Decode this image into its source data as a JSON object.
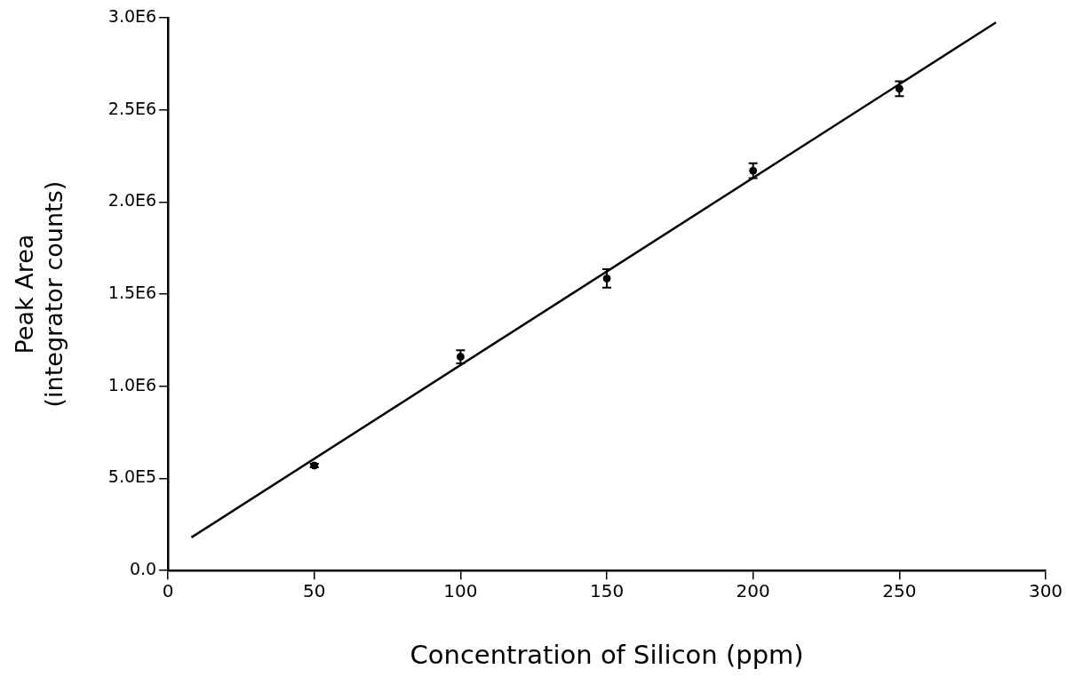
{
  "chart_data": {
    "type": "scatter",
    "xlabel": "Concentration of Silicon (ppm)",
    "ylabel": "Peak Area\n(integrator counts)",
    "xlim": [
      0,
      300
    ],
    "xticks": [
      0,
      50,
      100,
      150,
      200,
      250,
      300
    ],
    "ylim": [
      0,
      3000000
    ],
    "yticks": [
      {
        "value": 0,
        "label": "0.0"
      },
      {
        "value": 500000,
        "label": "5.0E5"
      },
      {
        "value": 1000000,
        "label": "1.0E6"
      },
      {
        "value": 1500000,
        "label": "1.5E6"
      },
      {
        "value": 2000000,
        "label": "2.0E6"
      },
      {
        "value": 2500000,
        "label": "2.5E6"
      },
      {
        "value": 3000000,
        "label": "3.0E6"
      }
    ],
    "grid": false,
    "legend": false,
    "series": [
      {
        "color": "#000000",
        "marker": "circle",
        "x": [
          50,
          100,
          150,
          200,
          250
        ],
        "values": [
          570000,
          1160000,
          1585000,
          2170000,
          2615000
        ],
        "errors": [
          10000,
          35000,
          50000,
          40000,
          40000
        ]
      },
      {
        "type": "line",
        "color": "#000000",
        "x": [
          8,
          283
        ],
        "values": [
          180000,
          2975000
        ]
      }
    ]
  }
}
